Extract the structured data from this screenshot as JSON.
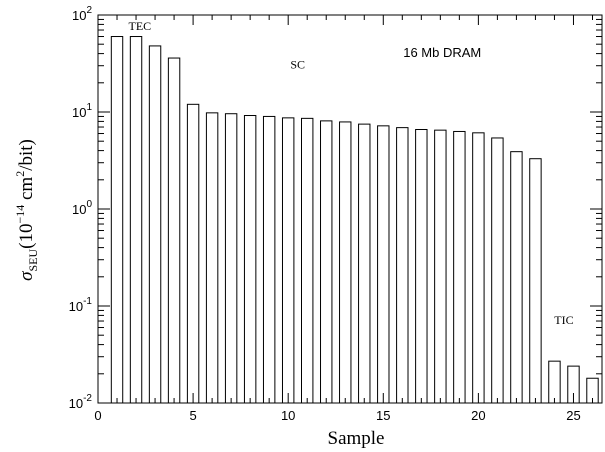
{
  "chart_data": {
    "type": "bar",
    "title": "",
    "xlabel": "Sample",
    "ylabel_base": "σ",
    "ylabel_sub": "SEU",
    "ylabel_units_pre": "(10",
    "ylabel_units_exp": "−14",
    "ylabel_units_mid": " cm",
    "ylabel_units_exp2": "2",
    "ylabel_units_post": "/bit)",
    "y_scale": "log",
    "ylim": [
      0.01,
      100
    ],
    "xlim": [
      0,
      26.5
    ],
    "x_ticks": [
      0,
      5,
      10,
      15,
      20,
      25
    ],
    "y_ticks": [
      {
        "base": "10",
        "exp": "-2",
        "value": 0.01
      },
      {
        "base": "10",
        "exp": "-1",
        "value": 0.1
      },
      {
        "base": "10",
        "exp": "0",
        "value": 1
      },
      {
        "base": "10",
        "exp": "1",
        "value": 10
      },
      {
        "base": "10",
        "exp": "2",
        "value": 100
      }
    ],
    "grid": false,
    "bar_color": "#ffffff",
    "edge_color": "#000000",
    "x": [
      1,
      2,
      3,
      4,
      5,
      6,
      7,
      8,
      9,
      10,
      11,
      12,
      13,
      14,
      15,
      16,
      17,
      18,
      19,
      20,
      21,
      22,
      23,
      24,
      25,
      26
    ],
    "values": [
      60,
      60,
      48,
      36,
      12,
      9.8,
      9.6,
      9.2,
      9.0,
      8.7,
      8.6,
      8.1,
      7.9,
      7.5,
      7.2,
      6.9,
      6.6,
      6.5,
      6.3,
      6.1,
      5.4,
      3.9,
      3.3,
      0.027,
      0.024,
      0.018
    ],
    "annotations": [
      {
        "text": "TEC",
        "x": 2.2,
        "y": 70
      },
      {
        "text": "SC",
        "x": 10.5,
        "y": 28
      },
      {
        "text": "16 Mb DRAM",
        "x": 18.1,
        "y": 37
      },
      {
        "text": "TIC",
        "x": 24.5,
        "y": 0.065
      }
    ]
  }
}
